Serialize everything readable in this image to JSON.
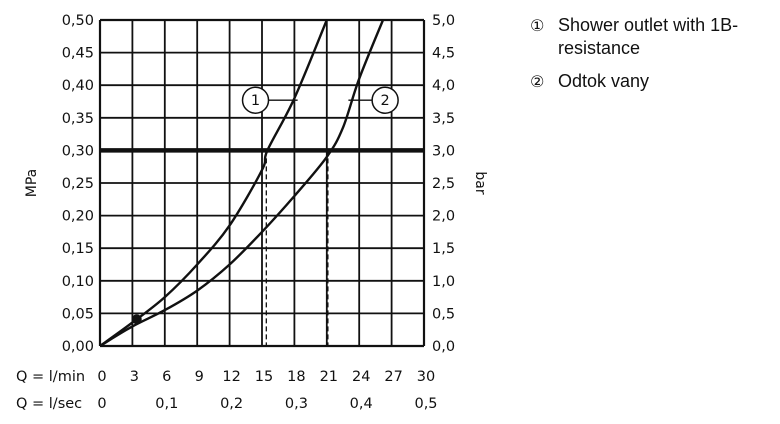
{
  "chart_data": {
    "type": "line",
    "xlabel": "Q = l/min",
    "x2label": "Q = l/sec",
    "ylabel": "MPa",
    "y2label": "bar",
    "xlim": [
      0,
      30
    ],
    "ylim": [
      0,
      0.5
    ],
    "x_ticks": [
      "0",
      "3",
      "6",
      "9",
      "12",
      "15",
      "18",
      "21",
      "24",
      "27",
      "30"
    ],
    "x2_ticks": [
      "0",
      "0,1",
      "0,2",
      "0,3",
      "0,4",
      "0,5"
    ],
    "y_ticks": [
      "0,00",
      "0,05",
      "0,10",
      "0,15",
      "0,20",
      "0,25",
      "0,30",
      "0,35",
      "0,40",
      "0,45",
      "0,50"
    ],
    "y2_ticks": [
      "0,0",
      "0,5",
      "1,0",
      "1,5",
      "2,0",
      "2,5",
      "3,0",
      "3,5",
      "4,0",
      "4,5",
      "5,0"
    ],
    "grid": true,
    "reference_line": 0.3,
    "marker_point": {
      "x": 3.4,
      "y": 0.041
    },
    "series": [
      {
        "marker": "1",
        "x": [
          0,
          3,
          6,
          9,
          12,
          15,
          15.5,
          18,
          21
        ],
        "y": [
          0,
          0.036,
          0.075,
          0.125,
          0.185,
          0.27,
          0.3,
          0.38,
          0.5
        ]
      },
      {
        "marker": "2",
        "x": [
          0,
          3,
          6,
          9,
          12,
          15,
          18,
          21,
          22.5,
          24,
          26.2
        ],
        "y": [
          0,
          0.03,
          0.055,
          0.085,
          0.125,
          0.175,
          0.23,
          0.29,
          0.335,
          0.41,
          0.5
        ]
      }
    ],
    "drop_lines_x": [
      15.4,
      21.1
    ],
    "legend": [
      {
        "num": "①",
        "text": "Shower outlet with 1B-resistance"
      },
      {
        "num": "②",
        "text": "Odtok vany"
      }
    ]
  }
}
